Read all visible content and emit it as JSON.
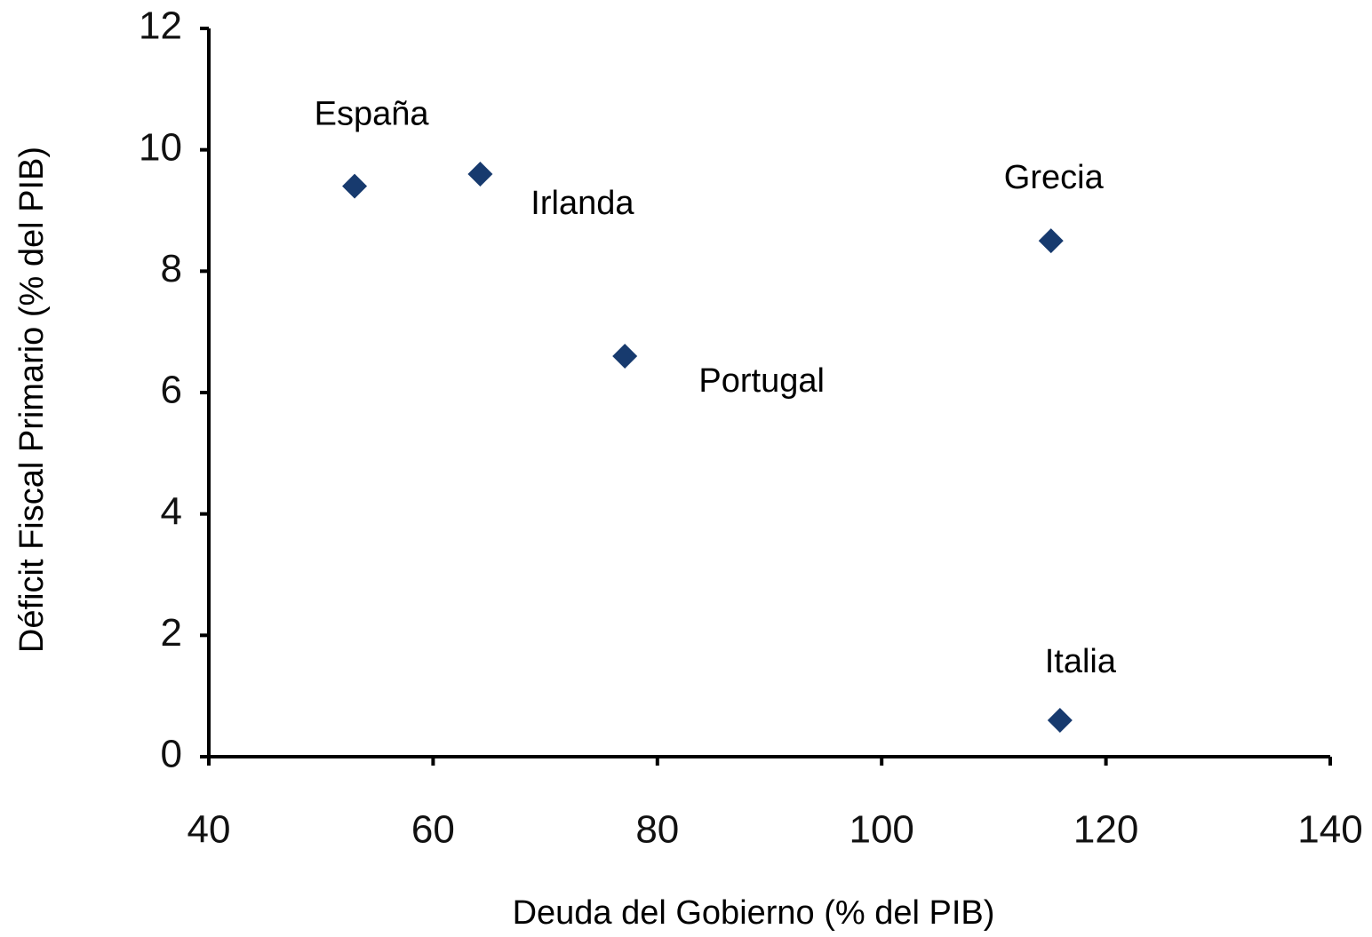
{
  "chart_data": {
    "type": "scatter",
    "x_label": "Deuda del Gobierno (% del PIB)",
    "y_label": "Déficit Fiscal Primario (% del PIB)",
    "labels": [
      "España",
      "Irlanda",
      "Portugal",
      "Grecia",
      "Italia"
    ],
    "x": [
      53,
      64.2,
      77.1,
      115.1,
      115.9
    ],
    "values": [
      9.4,
      9.6,
      6.6,
      8.5,
      0.6
    ],
    "color": "#173a6e",
    "xlim": [
      40,
      140
    ],
    "xticks": [
      40,
      60,
      80,
      100,
      120,
      140
    ],
    "ylim": [
      0,
      12
    ],
    "yticks": [
      0,
      2,
      4,
      6,
      8,
      10,
      12
    ]
  }
}
